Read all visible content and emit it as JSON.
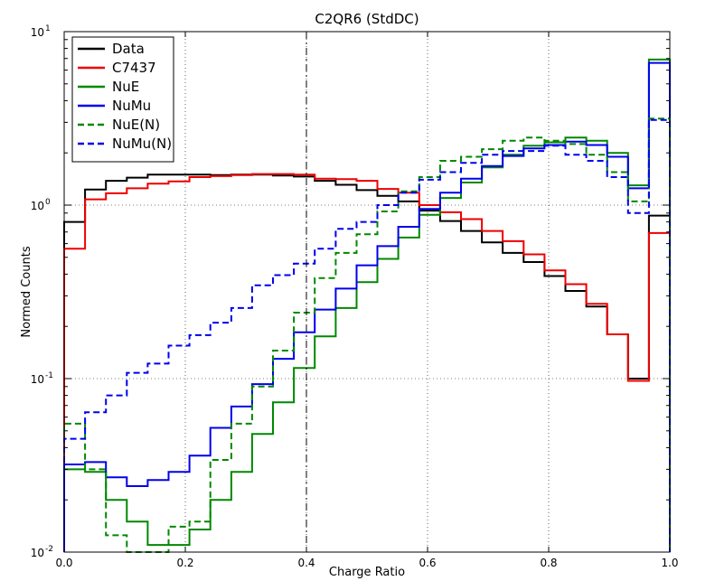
{
  "chart_data": {
    "type": "line",
    "style": "step histogram",
    "title": "C2QR6 (StdDC)",
    "xlabel": "Charge Ratio",
    "ylabel": "Normed Counts",
    "xlim": [
      0.0,
      1.0
    ],
    "ylim": [
      0.01,
      10
    ],
    "yscale": "log",
    "grid": true,
    "legend_position": "top-left",
    "x_tick_labels": [
      "0.0",
      "0.2",
      "0.4",
      "0.6",
      "0.8",
      "1.0"
    ],
    "y_tick_labels": [
      {
        "base": "10",
        "exp": "-2"
      },
      {
        "base": "10",
        "exp": "-1"
      },
      {
        "base": "10",
        "exp": "0"
      },
      {
        "base": "10",
        "exp": "1"
      }
    ],
    "vertical_line_x": 0.4,
    "bin_edges": [
      0.0,
      0.0345,
      0.069,
      0.1034,
      0.1379,
      0.1724,
      0.2069,
      0.2414,
      0.2759,
      0.3103,
      0.3448,
      0.3793,
      0.4138,
      0.4483,
      0.4828,
      0.5172,
      0.5517,
      0.5862,
      0.6207,
      0.6552,
      0.6897,
      0.7241,
      0.7586,
      0.7931,
      0.8276,
      0.8621,
      0.8966,
      0.931,
      0.9655,
      1.0
    ],
    "series": [
      {
        "name": "Data",
        "color": "#000000",
        "dashed": false,
        "values": [
          0.8,
          1.23,
          1.38,
          1.44,
          1.5,
          1.5,
          1.5,
          1.49,
          1.5,
          1.5,
          1.48,
          1.46,
          1.38,
          1.31,
          1.22,
          1.13,
          1.05,
          0.93,
          0.81,
          0.71,
          0.61,
          0.53,
          0.47,
          0.39,
          0.32,
          0.26,
          0.18,
          0.1,
          0.87
        ]
      },
      {
        "name": "C7437",
        "color": "#ee0000",
        "dashed": false,
        "values": [
          0.56,
          1.08,
          1.17,
          1.25,
          1.33,
          1.37,
          1.45,
          1.47,
          1.49,
          1.51,
          1.51,
          1.5,
          1.42,
          1.41,
          1.38,
          1.24,
          1.18,
          1.0,
          0.91,
          0.83,
          0.71,
          0.62,
          0.52,
          0.42,
          0.35,
          0.27,
          0.18,
          0.097,
          0.69
        ]
      },
      {
        "name": "NuE",
        "color": "#008800",
        "dashed": false,
        "values": [
          0.03,
          0.029,
          0.02,
          0.015,
          0.011,
          0.011,
          0.0135,
          0.02,
          0.029,
          0.048,
          0.073,
          0.115,
          0.175,
          0.255,
          0.36,
          0.49,
          0.65,
          0.88,
          1.1,
          1.35,
          1.65,
          1.95,
          2.2,
          2.3,
          2.45,
          2.35,
          2.0,
          1.3,
          6.9
        ]
      },
      {
        "name": "NuMu",
        "color": "#0000ee",
        "dashed": false,
        "values": [
          0.032,
          0.033,
          0.027,
          0.024,
          0.026,
          0.029,
          0.036,
          0.052,
          0.069,
          0.093,
          0.13,
          0.185,
          0.25,
          0.33,
          0.45,
          0.58,
          0.75,
          0.95,
          1.18,
          1.42,
          1.68,
          1.92,
          2.12,
          2.22,
          2.32,
          2.22,
          1.9,
          1.25,
          6.6
        ]
      },
      {
        "name": "NuE(N)",
        "color": "#008800",
        "dashed": true,
        "values": [
          0.055,
          0.03,
          0.0125,
          0.01,
          0.01,
          0.014,
          0.015,
          0.034,
          0.055,
          0.09,
          0.145,
          0.24,
          0.38,
          0.53,
          0.68,
          0.92,
          1.2,
          1.45,
          1.8,
          1.9,
          2.1,
          2.35,
          2.45,
          2.35,
          2.25,
          1.95,
          1.55,
          1.05,
          3.15
        ]
      },
      {
        "name": "NuMu(N)",
        "color": "#0000ee",
        "dashed": true,
        "values": [
          0.045,
          0.064,
          0.08,
          0.108,
          0.122,
          0.155,
          0.178,
          0.21,
          0.255,
          0.345,
          0.395,
          0.46,
          0.56,
          0.73,
          0.8,
          1.0,
          1.18,
          1.4,
          1.55,
          1.75,
          1.95,
          2.05,
          2.05,
          2.2,
          1.95,
          1.8,
          1.45,
          0.9,
          3.1
        ]
      }
    ]
  }
}
